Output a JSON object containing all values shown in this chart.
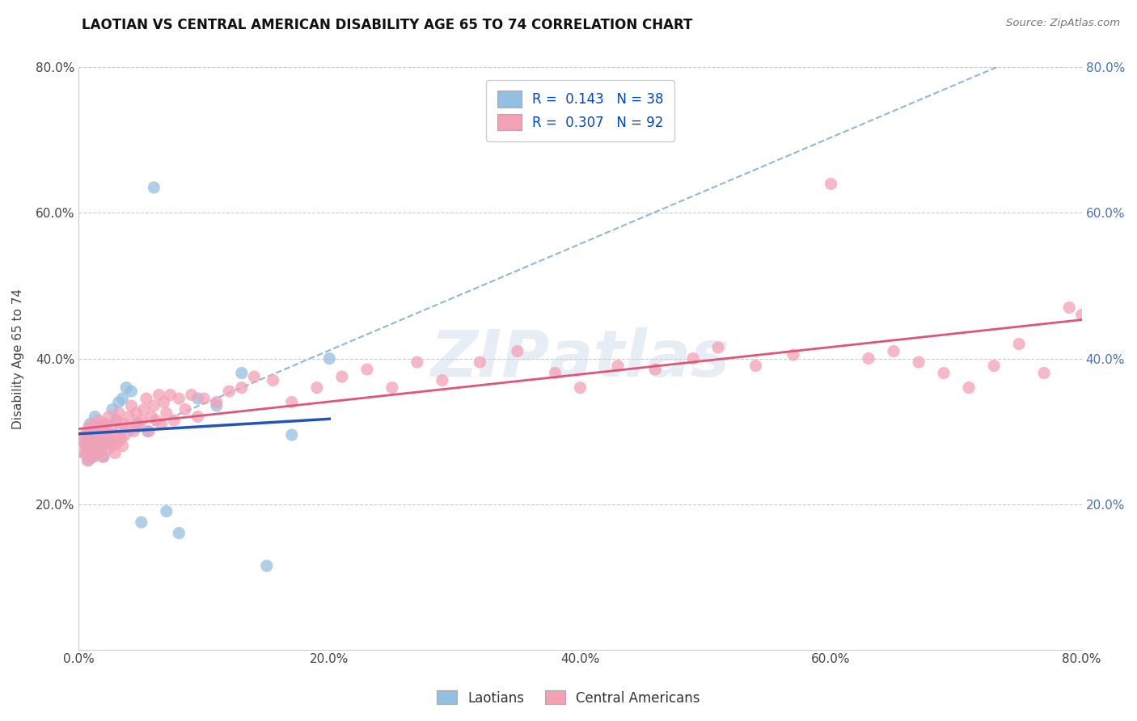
{
  "title": "LAOTIAN VS CENTRAL AMERICAN DISABILITY AGE 65 TO 74 CORRELATION CHART",
  "source_text": "Source: ZipAtlas.com",
  "ylabel": "Disability Age 65 to 74",
  "xlim": [
    0.0,
    0.8
  ],
  "ylim": [
    0.0,
    0.8
  ],
  "xtick_labels": [
    "0.0%",
    "20.0%",
    "40.0%",
    "60.0%",
    "80.0%"
  ],
  "xtick_vals": [
    0.0,
    0.2,
    0.4,
    0.6,
    0.8
  ],
  "ytick_labels": [
    "20.0%",
    "40.0%",
    "60.0%",
    "80.0%"
  ],
  "ytick_vals": [
    0.2,
    0.4,
    0.6,
    0.8
  ],
  "laotian_color": "#93bfe0",
  "central_american_color": "#f4a0b5",
  "laotian_line_color": "#2255bb",
  "central_american_line_color": "#e05575",
  "R_laotian": 0.143,
  "N_laotian": 38,
  "R_central": 0.307,
  "N_central": 92,
  "legend_label_1": "Laotians",
  "legend_label_2": "Central Americans",
  "laotian_x": [
    0.005,
    0.006,
    0.007,
    0.008,
    0.009,
    0.01,
    0.011,
    0.012,
    0.013,
    0.014,
    0.015,
    0.016,
    0.017,
    0.018,
    0.019,
    0.02,
    0.021,
    0.022,
    0.023,
    0.025,
    0.027,
    0.03,
    0.032,
    0.035,
    0.038,
    0.042,
    0.046,
    0.05,
    0.055,
    0.06,
    0.07,
    0.08,
    0.095,
    0.11,
    0.13,
    0.15,
    0.17,
    0.2
  ],
  "laotian_y": [
    0.285,
    0.27,
    0.295,
    0.26,
    0.31,
    0.28,
    0.3,
    0.265,
    0.32,
    0.275,
    0.29,
    0.305,
    0.285,
    0.275,
    0.3,
    0.265,
    0.31,
    0.285,
    0.295,
    0.285,
    0.33,
    0.315,
    0.34,
    0.345,
    0.36,
    0.355,
    0.31,
    0.175,
    0.3,
    0.635,
    0.19,
    0.16,
    0.345,
    0.335,
    0.38,
    0.115,
    0.295,
    0.4
  ],
  "central_x": [
    0.003,
    0.004,
    0.005,
    0.006,
    0.007,
    0.008,
    0.009,
    0.01,
    0.011,
    0.012,
    0.013,
    0.014,
    0.015,
    0.016,
    0.017,
    0.018,
    0.019,
    0.02,
    0.021,
    0.022,
    0.023,
    0.024,
    0.025,
    0.026,
    0.027,
    0.028,
    0.029,
    0.03,
    0.031,
    0.032,
    0.033,
    0.034,
    0.035,
    0.036,
    0.037,
    0.038,
    0.04,
    0.042,
    0.044,
    0.046,
    0.048,
    0.05,
    0.052,
    0.054,
    0.056,
    0.058,
    0.06,
    0.062,
    0.064,
    0.066,
    0.068,
    0.07,
    0.073,
    0.076,
    0.08,
    0.085,
    0.09,
    0.095,
    0.1,
    0.11,
    0.12,
    0.13,
    0.14,
    0.155,
    0.17,
    0.19,
    0.21,
    0.23,
    0.25,
    0.27,
    0.29,
    0.32,
    0.35,
    0.38,
    0.4,
    0.43,
    0.46,
    0.49,
    0.51,
    0.54,
    0.57,
    0.6,
    0.63,
    0.65,
    0.67,
    0.69,
    0.71,
    0.73,
    0.75,
    0.77,
    0.79,
    0.8
  ],
  "central_y": [
    0.285,
    0.27,
    0.295,
    0.28,
    0.26,
    0.305,
    0.275,
    0.29,
    0.265,
    0.31,
    0.285,
    0.3,
    0.27,
    0.315,
    0.28,
    0.295,
    0.265,
    0.31,
    0.285,
    0.3,
    0.275,
    0.32,
    0.29,
    0.305,
    0.28,
    0.295,
    0.27,
    0.315,
    0.285,
    0.325,
    0.3,
    0.29,
    0.28,
    0.31,
    0.295,
    0.305,
    0.32,
    0.335,
    0.3,
    0.325,
    0.31,
    0.315,
    0.33,
    0.345,
    0.3,
    0.32,
    0.335,
    0.315,
    0.35,
    0.31,
    0.34,
    0.325,
    0.35,
    0.315,
    0.345,
    0.33,
    0.35,
    0.32,
    0.345,
    0.34,
    0.355,
    0.36,
    0.375,
    0.37,
    0.34,
    0.36,
    0.375,
    0.385,
    0.36,
    0.395,
    0.37,
    0.395,
    0.41,
    0.38,
    0.36,
    0.39,
    0.385,
    0.4,
    0.415,
    0.39,
    0.405,
    0.64,
    0.4,
    0.41,
    0.395,
    0.38,
    0.36,
    0.39,
    0.42,
    0.38,
    0.47,
    0.46
  ]
}
